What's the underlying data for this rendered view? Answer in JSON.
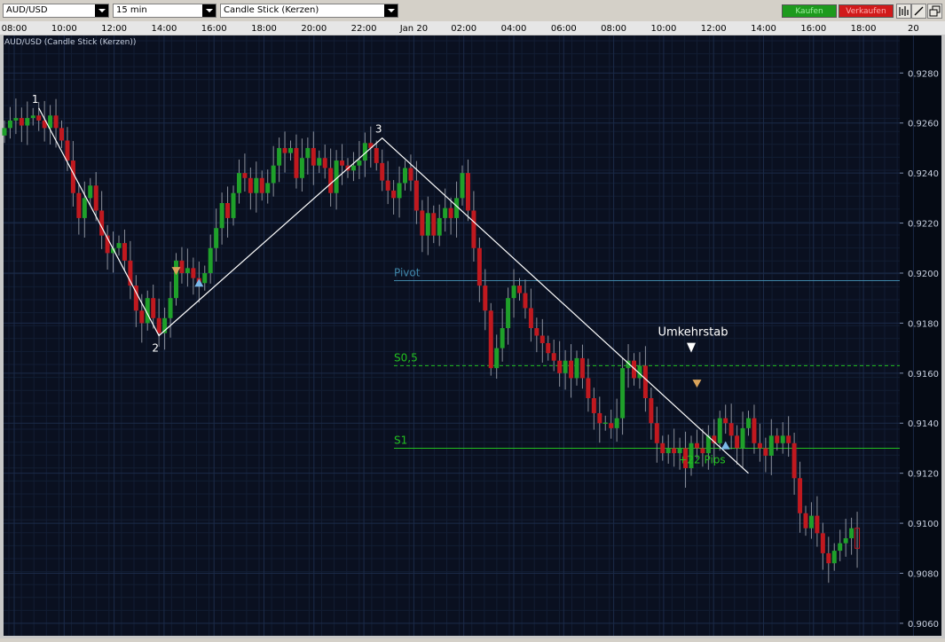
{
  "toolbar": {
    "symbol": "AUD/USD",
    "timeframe": "15 min",
    "chart_style": "Candle Stick (Kerzen)",
    "buy_label": "Kaufen",
    "sell_label": "Verkaufen",
    "tool_icons": [
      "bar-chart-icon",
      "draw-line-icon",
      "window-icon"
    ]
  },
  "chart_title": "AUD/USD (Candle Stick (Kerzen))",
  "colors": {
    "background": "#0a1020",
    "grid": "#1b2a48",
    "bull": "#1fa02a",
    "bear": "#c0191f",
    "pivot": "#3f86a8",
    "support": "#22c01e",
    "zigzag": "#ffffff",
    "marker_up": "#7ab8e8",
    "marker_down": "#d9a35a"
  },
  "chart_data": {
    "type": "candlestick",
    "x_ticks": [
      "08:00",
      "10:00",
      "12:00",
      "14:00",
      "16:00",
      "18:00",
      "20:00",
      "22:00",
      "Jan 20",
      "02:00",
      "04:00",
      "06:00",
      "08:00",
      "10:00",
      "12:00",
      "14:00",
      "16:00",
      "18:00",
      "20"
    ],
    "y_ticks": [
      "0.9280",
      "0.9260",
      "0.9240",
      "0.9220",
      "0.9200",
      "0.9180",
      "0.9160",
      "0.9140",
      "0.9120",
      "0.9100",
      "0.9080",
      "0.9060"
    ],
    "ylim": [
      0.9055,
      0.9295
    ],
    "closes": [
      0.9258,
      0.9261,
      0.9262,
      0.9259,
      0.9262,
      0.9263,
      0.9261,
      0.9258,
      0.9263,
      0.9258,
      0.9253,
      0.9245,
      0.9232,
      0.9222,
      0.923,
      0.9235,
      0.9225,
      0.9215,
      0.9208,
      0.921,
      0.9212,
      0.9205,
      0.9195,
      0.9185,
      0.918,
      0.919,
      0.9182,
      0.9176,
      0.9182,
      0.919,
      0.9205,
      0.92,
      0.9202,
      0.9198,
      0.9196,
      0.92,
      0.921,
      0.9218,
      0.9228,
      0.9222,
      0.9232,
      0.924,
      0.9238,
      0.9232,
      0.9238,
      0.9232,
      0.9236,
      0.9243,
      0.925,
      0.9248,
      0.925,
      0.9238,
      0.9246,
      0.925,
      0.9243,
      0.9246,
      0.9242,
      0.9232,
      0.9245,
      0.9243,
      0.9241,
      0.9243,
      0.9245,
      0.9252,
      0.925,
      0.9244,
      0.9237,
      0.9233,
      0.923,
      0.9236,
      0.9242,
      0.9237,
      0.9225,
      0.9215,
      0.9224,
      0.9215,
      0.9222,
      0.9226,
      0.9222,
      0.923,
      0.924,
      0.9225,
      0.921,
      0.9195,
      0.9185,
      0.9162,
      0.917,
      0.9178,
      0.919,
      0.9195,
      0.9192,
      0.9186,
      0.9178,
      0.9175,
      0.9172,
      0.9168,
      0.9165,
      0.916,
      0.9165,
      0.9158,
      0.9166,
      0.9158,
      0.915,
      0.9144,
      0.914,
      0.914,
      0.9138,
      0.9142,
      0.9162,
      0.9165,
      0.9158,
      0.9163,
      0.915,
      0.914,
      0.9132,
      0.9128,
      0.913,
      0.9128,
      0.913,
      0.9122,
      0.9132,
      0.913,
      0.9128,
      0.9135,
      0.9132,
      0.9142,
      0.914,
      0.9135,
      0.913,
      0.9138,
      0.9142,
      0.9132,
      0.913,
      0.9127,
      0.9135,
      0.9132,
      0.9135,
      0.9132,
      0.9118,
      0.9104,
      0.9098,
      0.9103,
      0.9096,
      0.9088,
      0.9084,
      0.9089,
      0.9092,
      0.9094,
      0.9098,
      0.909
    ],
    "zigzag": [
      {
        "label": "1",
        "bar": 6,
        "price": 0.9266
      },
      {
        "label": "2",
        "bar": 27,
        "price": 0.9175
      },
      {
        "label": "3",
        "bar": 66,
        "price": 0.9254
      },
      {
        "label": "",
        "bar": 130,
        "price": 0.912
      }
    ],
    "levels": [
      {
        "name": "Pivot",
        "price": 0.9197,
        "style": "solid"
      },
      {
        "name": "S0,5",
        "price": 0.9163,
        "style": "dashed"
      },
      {
        "name": "S1",
        "price": 0.913,
        "style": "solid"
      }
    ],
    "annotations": [
      {
        "text": "Umkehrstab",
        "bar": 120,
        "price": 0.917
      },
      {
        "text": "+22 Pips",
        "bar": 120,
        "price": 0.9125
      }
    ],
    "markers": [
      {
        "kind": "down",
        "bar": 30,
        "price": 0.9201
      },
      {
        "kind": "up",
        "bar": 34,
        "price": 0.9196
      },
      {
        "kind": "down",
        "bar": 121,
        "price": 0.9156
      },
      {
        "kind": "up",
        "bar": 126,
        "price": 0.9131
      }
    ]
  }
}
